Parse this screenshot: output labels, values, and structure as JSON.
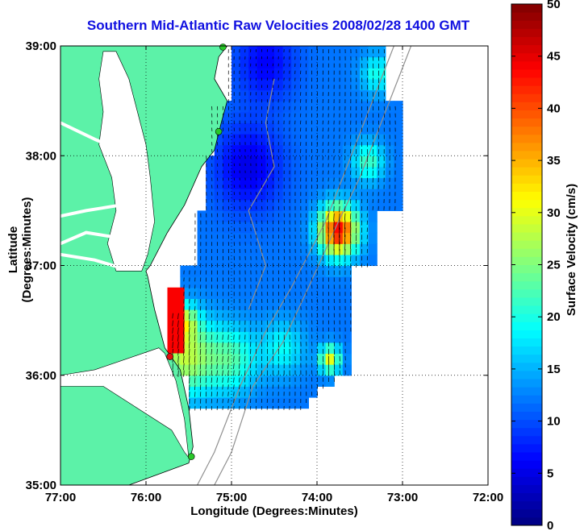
{
  "title": "Southern Mid-Atlantic Raw Velocities 2008/02/28 1400 GMT",
  "xaxis": {
    "label": "Longitude (Degrees:Minutes)",
    "ticks": [
      {
        "value": -77,
        "label": "77:00"
      },
      {
        "value": -76,
        "label": "76:00"
      },
      {
        "value": -75,
        "label": "75:00"
      },
      {
        "value": -74,
        "label": "74:00"
      },
      {
        "value": -73,
        "label": "73:00"
      },
      {
        "value": -72,
        "label": "72:00"
      }
    ],
    "range": [
      -77,
      -72
    ]
  },
  "yaxis": {
    "label": "Latitude (Degrees:Minutes)",
    "ticks": [
      {
        "value": 39,
        "label": "39:00"
      },
      {
        "value": 38,
        "label": "38:00"
      },
      {
        "value": 37,
        "label": "37:00"
      },
      {
        "value": 36,
        "label": "36:00"
      },
      {
        "value": 35,
        "label": "35:00"
      }
    ],
    "range": [
      35,
      39
    ]
  },
  "colorbar": {
    "label": "Surface Velocity (cm/s)",
    "ticks": [
      "0",
      "5",
      "10",
      "15",
      "20",
      "25",
      "30",
      "35",
      "40",
      "45",
      "50"
    ],
    "range": [
      0,
      50
    ],
    "colormap": "jet"
  },
  "colors": {
    "land": "#5cf2a8",
    "ocean": "#ffffff",
    "title": "#1010e0",
    "grid": "#000000",
    "arrows": "#000000",
    "bathymetry": "#909090"
  },
  "stations": [
    {
      "lon": -75.1,
      "lat": 38.99,
      "color": "#28c828"
    },
    {
      "lon": -75.15,
      "lat": 38.22,
      "color": "#28c828"
    },
    {
      "lon": -75.72,
      "lat": 36.17,
      "color": "#e01010"
    },
    {
      "lon": -75.47,
      "lat": 35.26,
      "color": "#28c828"
    }
  ]
}
